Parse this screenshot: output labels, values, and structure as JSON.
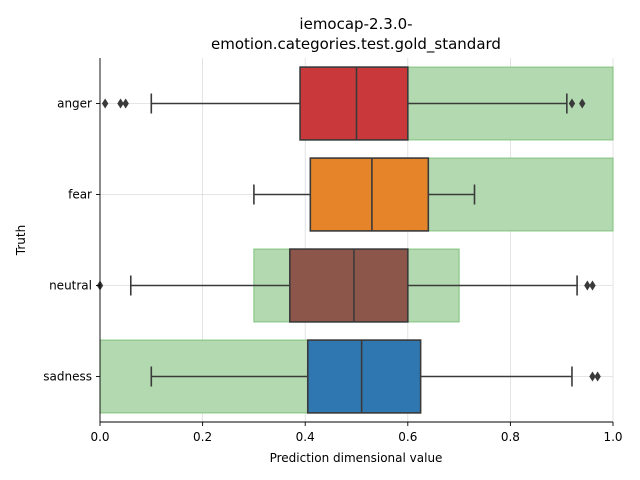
{
  "chart_data": {
    "type": "box",
    "title_lines": [
      "iemocap-2.3.0-",
      "emotion.categories.test.gold_standard"
    ],
    "xlabel": "Prediction dimensional value",
    "ylabel": "Truth",
    "xlim": [
      0,
      1
    ],
    "x_ticks": [
      "0.0",
      "0.2",
      "0.4",
      "0.6",
      "0.8",
      "1.0"
    ],
    "x_tick_values": [
      0,
      0.2,
      0.4,
      0.6,
      0.8,
      1.0
    ],
    "grid": true,
    "categories": [
      "anger",
      "fear",
      "neutral",
      "sadness"
    ],
    "boxes": [
      {
        "category": "anger",
        "whisker_low": 0.1,
        "q1": 0.39,
        "median": 0.5,
        "q3": 0.6,
        "whisker_high": 0.91,
        "outliers": [
          0.01,
          0.04,
          0.05,
          0.92,
          0.94
        ],
        "color": "#c9393c"
      },
      {
        "category": "fear",
        "whisker_low": 0.3,
        "q1": 0.41,
        "median": 0.53,
        "q3": 0.64,
        "whisker_high": 0.73,
        "outliers": [],
        "color": "#e6842a"
      },
      {
        "category": "neutral",
        "whisker_low": 0.06,
        "q1": 0.37,
        "median": 0.495,
        "q3": 0.6,
        "whisker_high": 0.93,
        "outliers": [
          0.0,
          0.95,
          0.96
        ],
        "color": "#8c564b"
      },
      {
        "category": "sadness",
        "whisker_low": 0.1,
        "q1": 0.405,
        "median": 0.51,
        "q3": 0.625,
        "whisker_high": 0.92,
        "outliers": [
          0.96,
          0.97
        ],
        "color": "#2f77b1"
      }
    ],
    "gold_ranges": [
      {
        "category": "anger",
        "range": [
          0.55,
          1.0
        ]
      },
      {
        "category": "fear",
        "range": [
          0.55,
          1.0
        ]
      },
      {
        "category": "neutral",
        "range": [
          0.3,
          0.7
        ]
      },
      {
        "category": "sadness",
        "range": [
          0.0,
          0.45
        ]
      }
    ],
    "colors": {
      "gold_fill": "#b2d9b0",
      "gold_stroke": "#7fc27b",
      "box_stroke": "#3a3a3a",
      "grid": "#dddddd"
    }
  }
}
